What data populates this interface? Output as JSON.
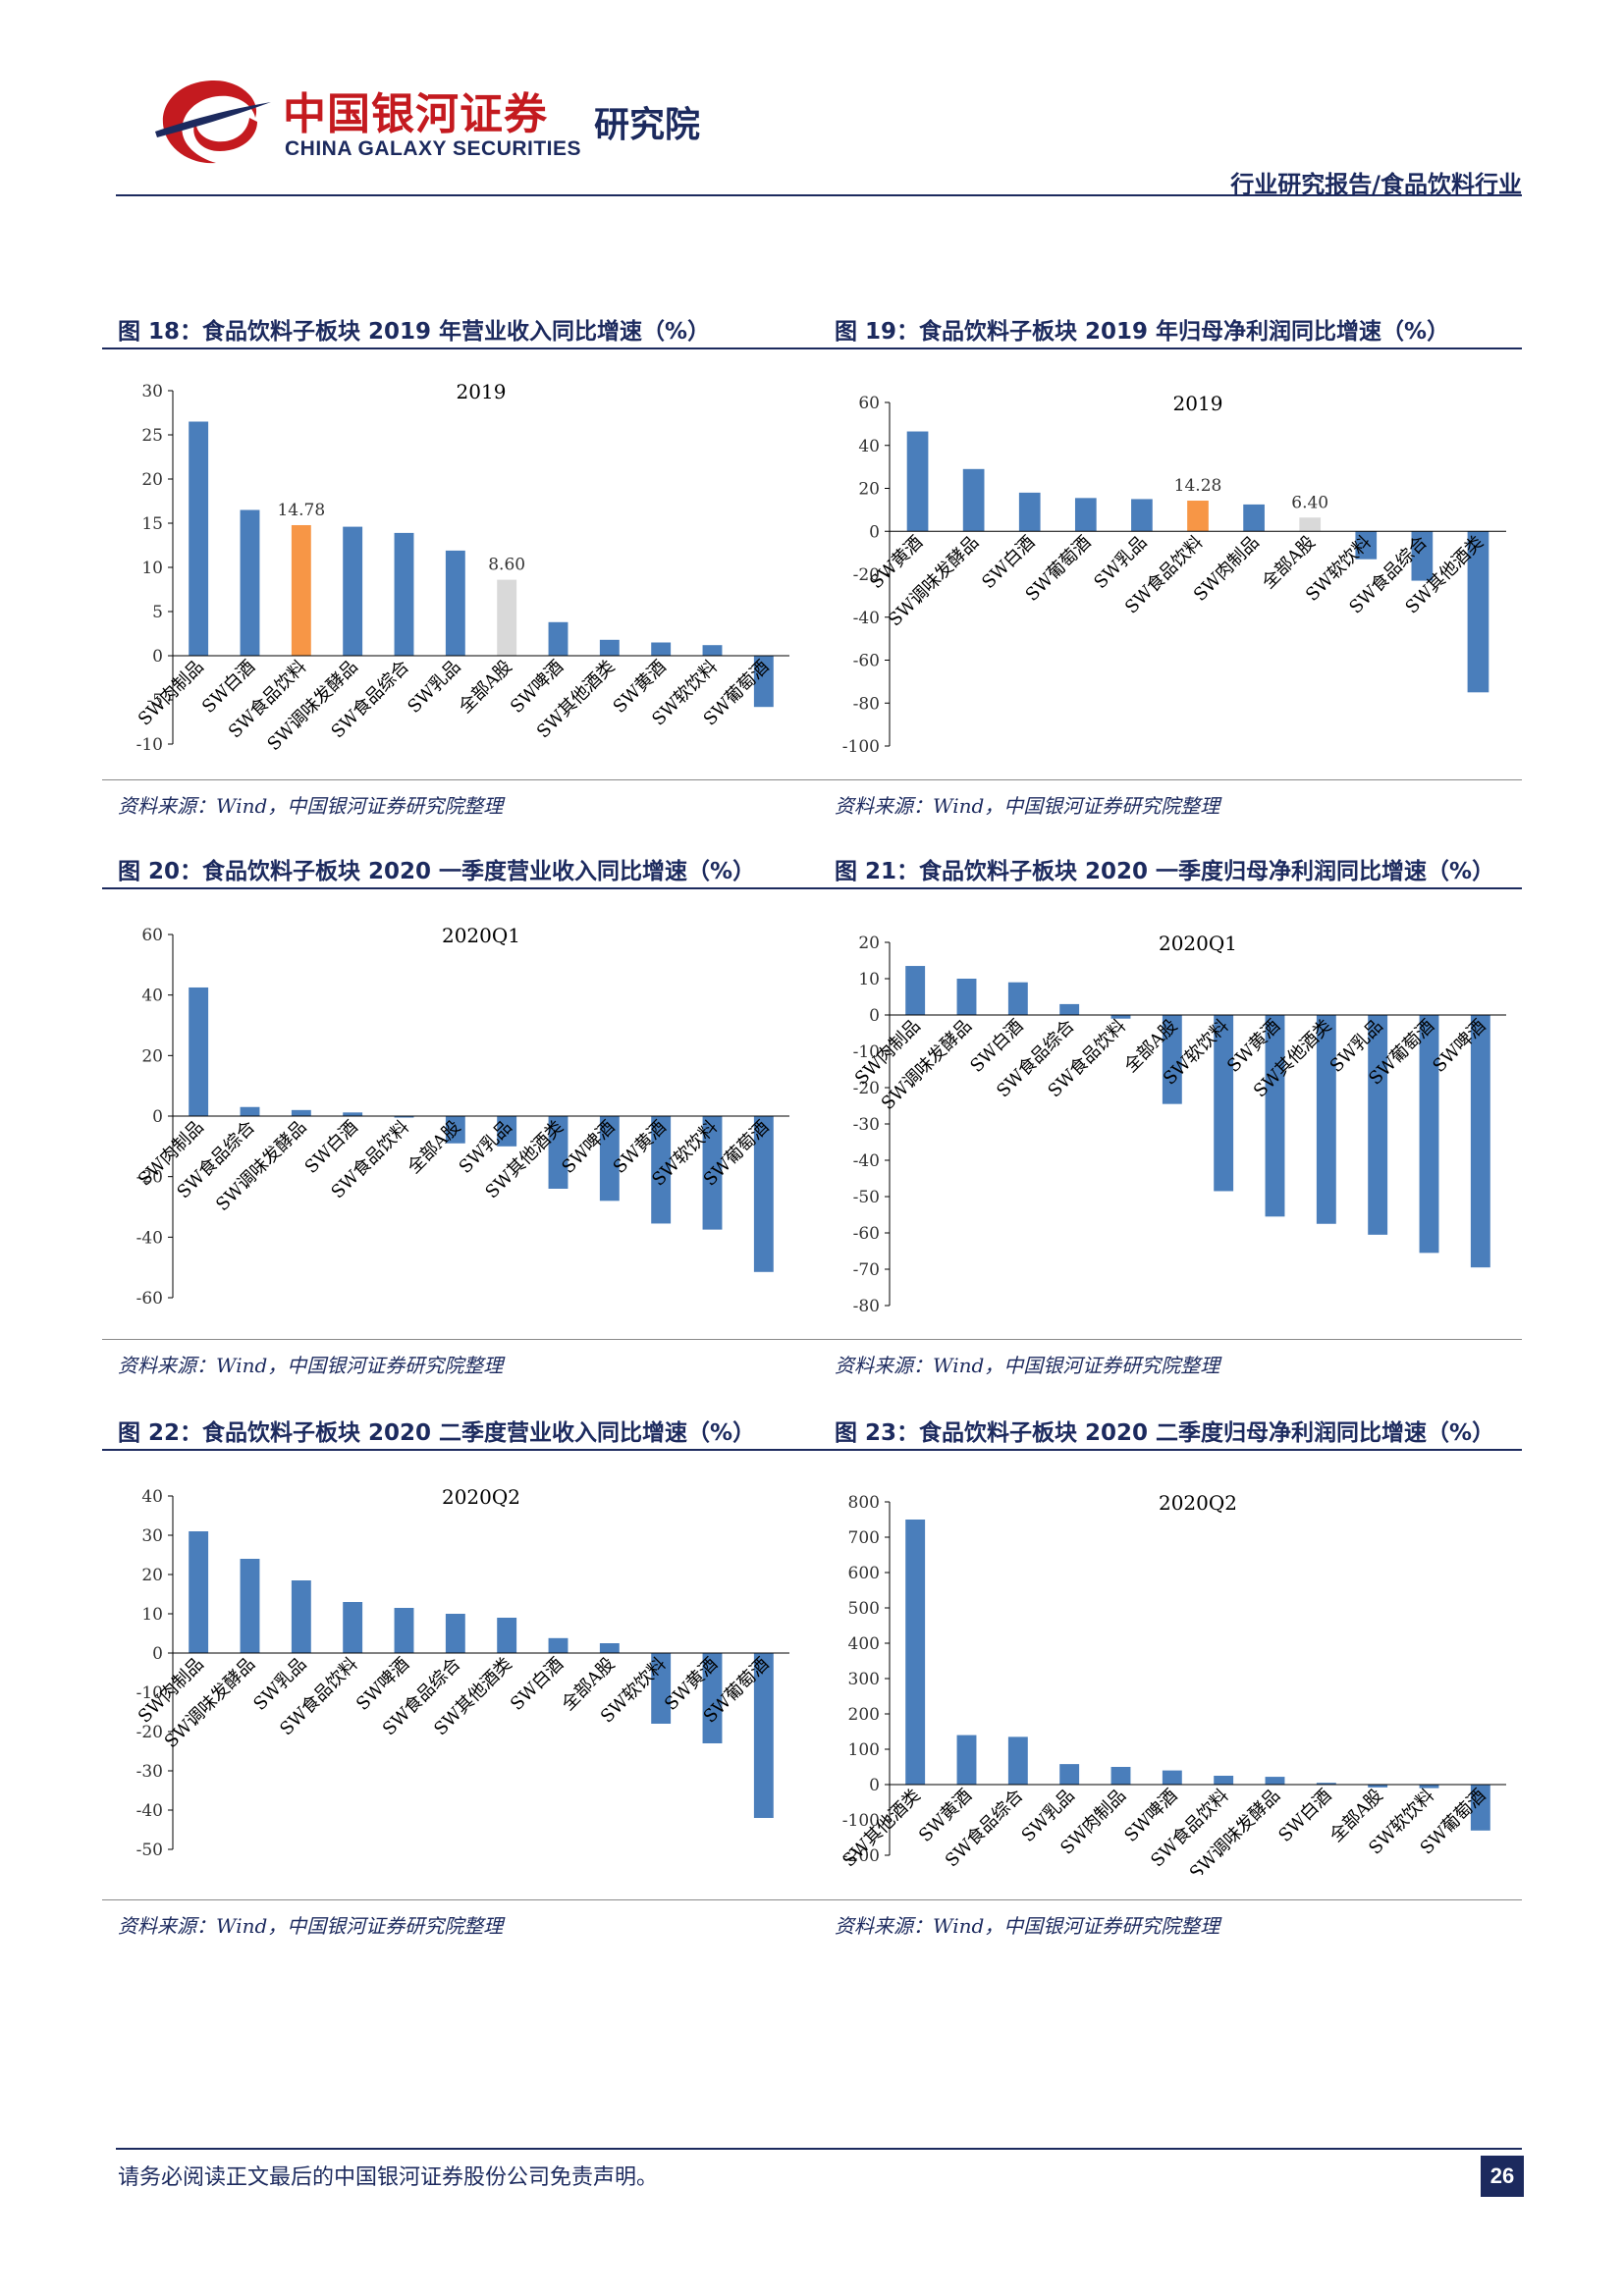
{
  "header": {
    "logo_cn": "中国银河证券",
    "logo_en": "CHINA GALAXY SECURITIES",
    "logo_sub": "研究院",
    "report_type": "行业研究报告/食品饮料行业"
  },
  "figures": [
    {
      "caption": "图 18：食品饮料子板块 2019 年营业收入同比增速（%）",
      "source": "资料来源：Wind，中国银河证券研究院整理"
    },
    {
      "caption": "图 19：食品饮料子板块 2019 年归母净利润同比增速（%）",
      "source": "资料来源：Wind，中国银河证券研究院整理"
    },
    {
      "caption": "图 20：食品饮料子板块 2020 一季度营业收入同比增速（%）",
      "source": "资料来源：Wind，中国银河证券研究院整理"
    },
    {
      "caption": "图 21：食品饮料子板块 2020 一季度归母净利润同比增速（%）",
      "source": "资料来源：Wind，中国银河证券研究院整理"
    },
    {
      "caption": "图 22：食品饮料子板块 2020 二季度营业收入同比增速（%）",
      "source": "资料来源：Wind，中国银河证券研究院整理"
    },
    {
      "caption": "图 23：食品饮料子板块 2020 二季度归母净利润同比增速（%）",
      "source": "资料来源：Wind，中国银河证券研究院整理"
    }
  ],
  "colors": {
    "bar": "#4a7ebb",
    "highlight": "#f79646",
    "market": "#d9d9d9",
    "navy": "#1c2a5e"
  },
  "chart_data": [
    {
      "type": "bar",
      "title": "2019",
      "ylim": [
        -10,
        30
      ],
      "yticks": [
        -10,
        -5,
        0,
        5,
        10,
        15,
        20,
        25,
        30
      ],
      "categories": [
        "SW肉制品",
        "SW白酒",
        "SW食品饮料",
        "SW调味发酵品",
        "SW食品综合",
        "SW乳品",
        "全部A股",
        "SW啤酒",
        "SW其他酒类",
        "SW黄酒",
        "SW软饮料",
        "SW葡萄酒"
      ],
      "values": [
        26.5,
        16.5,
        14.78,
        14.6,
        13.9,
        11.9,
        8.6,
        3.8,
        1.8,
        1.5,
        1.2,
        -5.8
      ],
      "highlight": "SW食品饮料",
      "market": "全部A股",
      "labels": [
        {
          "category": "SW食品饮料",
          "text": "14.78"
        },
        {
          "category": "全部A股",
          "text": "8.60"
        }
      ]
    },
    {
      "type": "bar",
      "title": "2019",
      "ylim": [
        -100,
        60
      ],
      "yticks": [
        -100,
        -80,
        -60,
        -40,
        -20,
        0,
        20,
        40,
        60
      ],
      "categories": [
        "SW黄酒",
        "SW调味发酵品",
        "SW白酒",
        "SW葡萄酒",
        "SW乳品",
        "SW食品饮料",
        "SW肉制品",
        "全部A股",
        "SW软饮料",
        "SW食品综合",
        "SW其他酒类"
      ],
      "values": [
        46.5,
        29,
        18,
        15.5,
        15,
        14.28,
        12.5,
        6.4,
        -13,
        -23,
        -75
      ],
      "highlight": "SW食品饮料",
      "market": "全部A股",
      "labels": [
        {
          "category": "SW食品饮料",
          "text": "14.28"
        },
        {
          "category": "全部A股",
          "text": "6.40"
        }
      ]
    },
    {
      "type": "bar",
      "title": "2020Q1",
      "ylim": [
        -60,
        60
      ],
      "yticks": [
        -60,
        -40,
        -20,
        0,
        20,
        40,
        60
      ],
      "categories": [
        "SW肉制品",
        "SW食品综合",
        "SW调味发酵品",
        "SW白酒",
        "SW食品饮料",
        "全部A股",
        "SW乳品",
        "SW其他酒类",
        "SW啤酒",
        "SW黄酒",
        "SW软饮料",
        "SW葡萄酒"
      ],
      "values": [
        42.5,
        3,
        2,
        1.2,
        -0.5,
        -9,
        -10,
        -24,
        -28,
        -35.5,
        -37.5,
        -51.5
      ],
      "labels": []
    },
    {
      "type": "bar",
      "title": "2020Q1",
      "ylim": [
        -80,
        20
      ],
      "yticks": [
        -80,
        -70,
        -60,
        -50,
        -40,
        -30,
        -20,
        -10,
        0,
        10,
        20
      ],
      "categories": [
        "SW肉制品",
        "SW调味发酵品",
        "SW白酒",
        "SW食品综合",
        "SW食品饮料",
        "全部A股",
        "SW软饮料",
        "SW黄酒",
        "SW其他酒类",
        "SW乳品",
        "SW葡萄酒",
        "SW啤酒"
      ],
      "values": [
        13.5,
        10,
        9,
        3,
        -1,
        -24.5,
        -48.5,
        -55.5,
        -57.5,
        -60.5,
        -65.5,
        -69.5
      ],
      "labels": []
    },
    {
      "type": "bar",
      "title": "2020Q2",
      "ylim": [
        -50,
        40
      ],
      "yticks": [
        -50,
        -40,
        -30,
        -20,
        -10,
        0,
        10,
        20,
        30,
        40
      ],
      "categories": [
        "SW肉制品",
        "SW调味发酵品",
        "SW乳品",
        "SW食品饮料",
        "SW啤酒",
        "SW食品综合",
        "SW其他酒类",
        "SW白酒",
        "全部A股",
        "SW软饮料",
        "SW黄酒",
        "SW葡萄酒"
      ],
      "values": [
        31,
        24,
        18.5,
        13,
        11.5,
        10,
        9,
        3.8,
        2.5,
        -18,
        -23,
        -42
      ],
      "labels": []
    },
    {
      "type": "bar",
      "title": "2020Q2",
      "ylim": [
        -200,
        800
      ],
      "yticks": [
        -200,
        -100,
        0,
        100,
        200,
        300,
        400,
        500,
        600,
        700,
        800
      ],
      "categories": [
        "SW其他酒类",
        "SW黄酒",
        "SW食品综合",
        "SW乳品",
        "SW肉制品",
        "SW啤酒",
        "SW食品饮料",
        "SW调味发酵品",
        "SW白酒",
        "全部A股",
        "SW软饮料",
        "SW葡萄酒"
      ],
      "values": [
        750,
        140,
        135,
        58,
        50,
        40,
        25,
        22,
        5,
        -8,
        -10,
        -130
      ],
      "labels": []
    }
  ],
  "footer": {
    "disclaimer": "请务必阅读正文最后的中国银河证券股份公司免责声明。",
    "page": "26"
  }
}
